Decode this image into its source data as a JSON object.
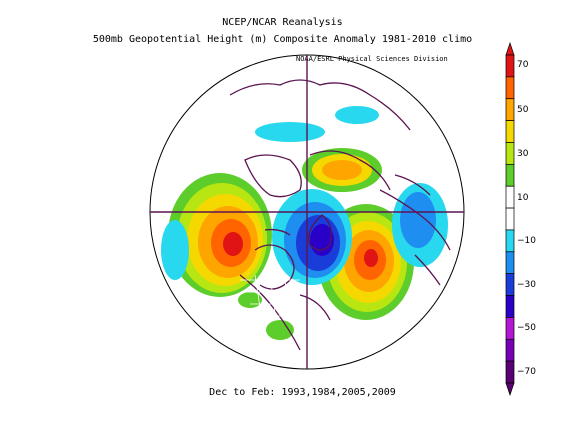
{
  "title": "NCEP/NCAR Reanalysis",
  "subtitle": "500mb Geopotential Height (m) Composite Anomaly 1981-2010 climo",
  "credit": "NOAA/ESRL Physical Sciences Division",
  "footer": "Dec to Feb: 1993,1984,2005,2009",
  "colorbar": {
    "colors": [
      "#5b0072",
      "#7a00b8",
      "#b418d4",
      "#2a00c8",
      "#1a3cd8",
      "#1e8ef0",
      "#28d8ee",
      "#ffffff",
      "#ffffff",
      "#5ccd2a",
      "#b8e612",
      "#f4d800",
      "#ffa500",
      "#ff6400",
      "#e01414"
    ],
    "labels": [
      "70",
      "50",
      "30",
      "10",
      "−10",
      "−30",
      "−50",
      "−70"
    ]
  },
  "anomalies": [
    {
      "name": "north-pacific-positive",
      "sign": "positive",
      "peak_m": 60
    },
    {
      "name": "north-atlantic-positive",
      "sign": "positive",
      "peak_m": 60
    },
    {
      "name": "siberia-positive",
      "sign": "positive",
      "peak_m": 50
    },
    {
      "name": "polar-negative",
      "sign": "negative",
      "peak_m": -40
    },
    {
      "name": "east-asia-negative",
      "sign": "negative",
      "peak_m": -20
    }
  ]
}
